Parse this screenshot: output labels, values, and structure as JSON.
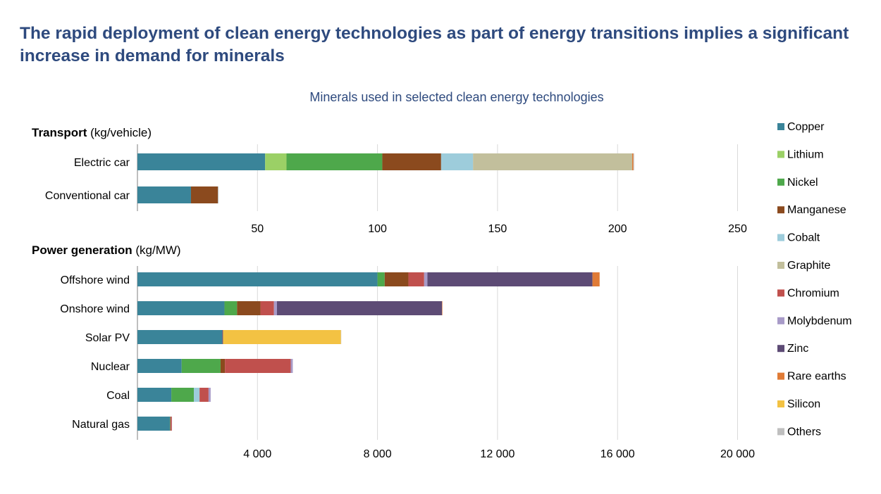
{
  "title": "The rapid deployment of clean energy technologies as part of energy transitions implies a significant increase in demand for minerals",
  "chart_data": [
    {
      "type": "bar",
      "orientation": "horizontal",
      "stacked": true,
      "title": "Minerals used in selected clean energy technologies",
      "panel_title": "Transport",
      "unit": "(kg/vehicle)",
      "xlim": [
        0,
        260
      ],
      "ticks": [
        50,
        100,
        150,
        200,
        250
      ],
      "tick_labels": [
        "50",
        "100",
        "150",
        "200",
        "250"
      ],
      "grid": true,
      "categories": [
        "Electric car",
        "Conventional car"
      ],
      "series": [
        {
          "name": "Copper",
          "values": [
            53.2,
            22.3
          ]
        },
        {
          "name": "Lithium",
          "values": [
            8.9,
            0
          ]
        },
        {
          "name": "Nickel",
          "values": [
            39.9,
            0
          ]
        },
        {
          "name": "Manganese",
          "values": [
            24.5,
            11.2
          ]
        },
        {
          "name": "Cobalt",
          "values": [
            13.3,
            0
          ]
        },
        {
          "name": "Graphite",
          "values": [
            66.3,
            0
          ]
        },
        {
          "name": "Chromium",
          "values": [
            0,
            0
          ]
        },
        {
          "name": "Molybdenum",
          "values": [
            0,
            0
          ]
        },
        {
          "name": "Zinc",
          "values": [
            0,
            0
          ]
        },
        {
          "name": "Rare earths",
          "values": [
            0.5,
            0
          ]
        },
        {
          "name": "Silicon",
          "values": [
            0,
            0
          ]
        },
        {
          "name": "Others",
          "values": [
            0.3,
            0.3
          ]
        }
      ]
    },
    {
      "type": "bar",
      "orientation": "horizontal",
      "stacked": true,
      "panel_title": "Power generation",
      "unit": "(kg/MW)",
      "xlim": [
        0,
        21000
      ],
      "ticks": [
        4000,
        8000,
        12000,
        16000,
        20000
      ],
      "tick_labels": [
        "4 000",
        "8 000",
        "12 000",
        "16 000",
        "20 000"
      ],
      "grid": true,
      "categories": [
        "Offshore wind",
        "Onshore wind",
        "Solar PV",
        "Nuclear",
        "Coal",
        "Natural gas"
      ],
      "series": [
        {
          "name": "Copper",
          "values": [
            8000,
            2900,
            2822,
            1473,
            1130,
            1080
          ]
        },
        {
          "name": "Lithium",
          "values": [
            0,
            0,
            0,
            0,
            0,
            0
          ]
        },
        {
          "name": "Nickel",
          "values": [
            240,
            420,
            0,
            1297,
            750,
            16
          ]
        },
        {
          "name": "Manganese",
          "values": [
            790,
            780,
            0,
            148,
            0,
            0
          ]
        },
        {
          "name": "Cobalt",
          "values": [
            0,
            0,
            0,
            0,
            190,
            0
          ]
        },
        {
          "name": "Graphite",
          "values": [
            0,
            0,
            0,
            0,
            0,
            0
          ]
        },
        {
          "name": "Chromium",
          "values": [
            525,
            450,
            0,
            2190,
            300,
            50
          ]
        },
        {
          "name": "Molybdenum",
          "values": [
            109,
            100,
            0,
            70,
            70,
            6
          ]
        },
        {
          "name": "Zinc",
          "values": [
            5500,
            5500,
            30,
            0,
            0,
            0
          ]
        },
        {
          "name": "Rare earths",
          "values": [
            239,
            14,
            0,
            0,
            0,
            0
          ]
        },
        {
          "name": "Silicon",
          "values": [
            0,
            0,
            3930,
            0,
            0,
            0
          ]
        },
        {
          "name": "Others",
          "values": [
            0,
            0,
            10,
            0,
            0,
            0
          ]
        }
      ]
    }
  ],
  "legend": {
    "position": "right",
    "items": [
      "Copper",
      "Lithium",
      "Nickel",
      "Manganese",
      "Cobalt",
      "Graphite",
      "Chromium",
      "Molybdenum",
      "Zinc",
      "Rare earths",
      "Silicon",
      "Others"
    ]
  },
  "colors": {
    "Copper": "#3A8499",
    "Lithium": "#9BD066",
    "Nickel": "#4EA84B",
    "Manganese": "#8B4A1E",
    "Cobalt": "#9DCCDB",
    "Graphite": "#C2BF9C",
    "Chromium": "#C0504D",
    "Molybdenum": "#A89BC8",
    "Zinc": "#5D4B75",
    "Rare earths": "#E07B36",
    "Silicon": "#F3C243",
    "Others": "#BFBFBF"
  }
}
